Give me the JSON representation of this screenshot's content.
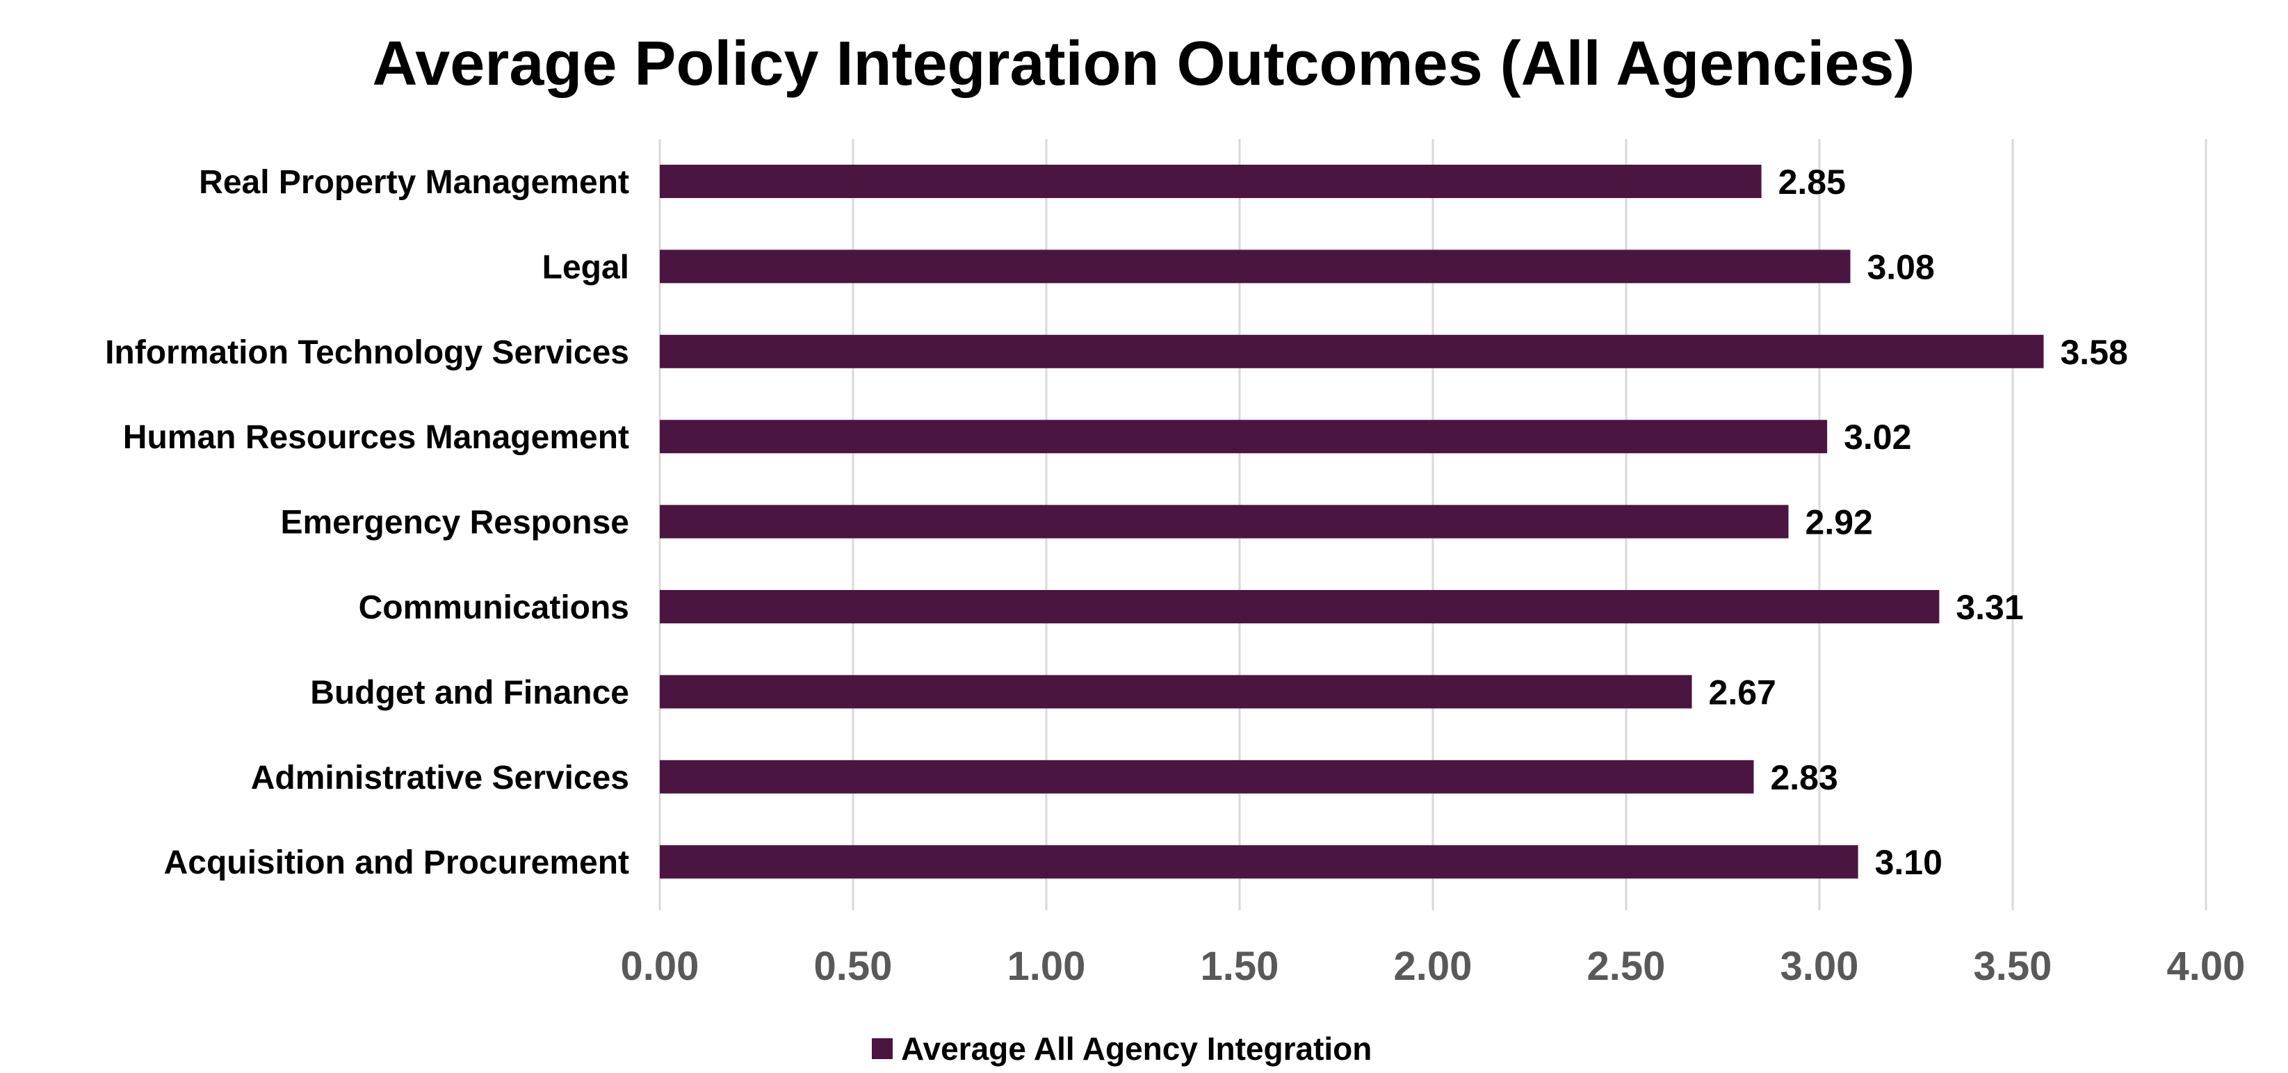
{
  "chart_data": {
    "type": "bar",
    "orientation": "horizontal",
    "title": "Average Policy Integration Outcomes (All Agencies)",
    "categories": [
      "Real Property Management",
      "Legal",
      "Information Technology Services",
      "Human Resources Management",
      "Emergency Response",
      "Communications",
      "Budget and Finance",
      "Administrative Services",
      "Acquisition and Procurement"
    ],
    "series": [
      {
        "name": "Average All Agency Integration",
        "values": [
          2.85,
          3.08,
          3.58,
          3.02,
          2.92,
          3.31,
          2.67,
          2.83,
          3.1
        ],
        "labels": [
          "2.85",
          "3.08",
          "3.58",
          "3.02",
          "2.92",
          "3.31",
          "2.67",
          "2.83",
          "3.10"
        ]
      }
    ],
    "xlim": [
      0,
      4
    ],
    "ticks": [
      "0.00",
      "0.50",
      "1.00",
      "1.50",
      "2.00",
      "2.50",
      "3.00",
      "3.50",
      "4.00"
    ],
    "grid": true,
    "legend": "bottom",
    "colors": {
      "bar": "#4a1540",
      "grid": "#d9d9d9",
      "tick": "#595959",
      "text": "#000000"
    }
  }
}
